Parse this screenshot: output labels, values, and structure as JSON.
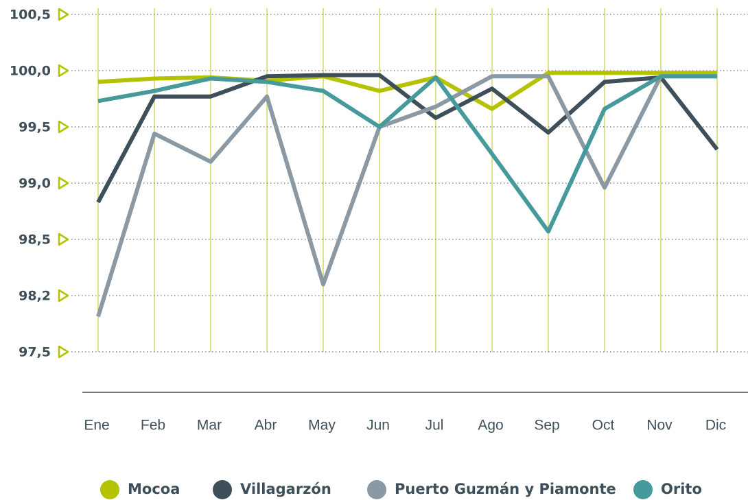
{
  "chart_data": {
    "type": "line",
    "categories": [
      "Ene",
      "Feb",
      "Mar",
      "Abr",
      "May",
      "Jun",
      "Jul",
      "Ago",
      "Sep",
      "Oct",
      "Nov",
      "Dic"
    ],
    "series": [
      {
        "name": "Mocoa",
        "color": "#b5c200",
        "values": [
          99.9,
          99.93,
          99.94,
          99.91,
          99.95,
          99.82,
          99.94,
          99.66,
          99.98,
          99.98,
          99.98,
          99.98
        ]
      },
      {
        "name": "Villagarzón",
        "color": "#3e4f5a",
        "values": [
          98.83,
          99.77,
          99.77,
          99.95,
          99.96,
          99.96,
          99.58,
          99.84,
          99.45,
          99.9,
          99.94,
          99.3
        ]
      },
      {
        "name": "Puerto Guzmán y Piamonte",
        "color": "#8a99a3",
        "values": [
          97.94,
          99.44,
          99.19,
          99.77,
          98.26,
          99.5,
          99.68,
          99.95,
          99.95,
          98.96,
          99.95,
          99.95
        ]
      },
      {
        "name": "Orito",
        "color": "#479a9c",
        "values": [
          99.73,
          99.82,
          99.93,
          99.9,
          99.82,
          99.5,
          99.94,
          99.26,
          98.57,
          99.66,
          99.95,
          99.95
        ]
      }
    ],
    "ylim": [
      97.5,
      100.5
    ],
    "yticks": [
      {
        "value": 100.5,
        "label": "100,5"
      },
      {
        "value": 100,
        "label": "100,0"
      },
      {
        "value": 99.5,
        "label": "99,5"
      },
      {
        "value": 99,
        "label": "99,0"
      },
      {
        "value": 98.5,
        "label": "98,5"
      },
      {
        "value": 98.2,
        "label": "98,2"
      },
      {
        "value": 97.5,
        "label": "97,5"
      }
    ],
    "grid": true
  }
}
